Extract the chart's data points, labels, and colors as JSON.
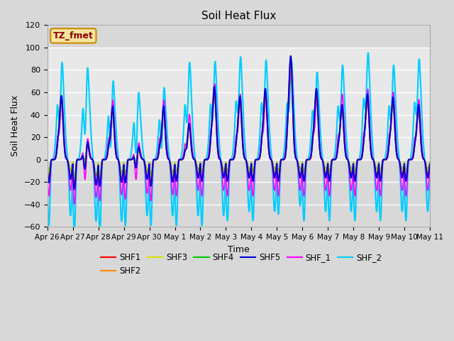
{
  "title": "Soil Heat Flux",
  "xlabel": "Time",
  "ylabel": "Soil Heat Flux",
  "ylim": [
    -60,
    120
  ],
  "tick_labels": [
    "Apr 26",
    "Apr 27",
    "Apr 28",
    "Apr 29",
    "Apr 30",
    "May 1",
    "May 2",
    "May 3",
    "May 4",
    "May 5",
    "May 6",
    "May 7",
    "May 8",
    "May 9",
    "May 10",
    "May 11"
  ],
  "series_colors": {
    "SHF1": "#ff0000",
    "SHF2": "#ff8800",
    "SHF3": "#dddd00",
    "SHF4": "#00cc00",
    "SHF5": "#0000dd",
    "SHF_1": "#ff00ff",
    "SHF_2": "#00ccff"
  },
  "legend_box_text": "TZ_fmet",
  "background_color": "#d8d8d8",
  "plot_bg_color": "#d8d8d8",
  "shaded_bg_color": "#e8e8e8",
  "grid_color": "#ffffff",
  "pos_peaks": {
    "SHF1": [
      65,
      20,
      55,
      15,
      55,
      38,
      72,
      63,
      70,
      100,
      70,
      55,
      65,
      62,
      55,
      40
    ],
    "SHF2": [
      65,
      20,
      55,
      15,
      55,
      38,
      72,
      63,
      70,
      100,
      70,
      55,
      65,
      62,
      55,
      40
    ],
    "SHF3": [
      60,
      18,
      50,
      12,
      50,
      35,
      68,
      58,
      65,
      90,
      65,
      50,
      60,
      57,
      50,
      36
    ],
    "SHF4": [
      60,
      18,
      50,
      12,
      50,
      35,
      68,
      58,
      65,
      90,
      65,
      50,
      60,
      57,
      50,
      36
    ],
    "SHF5": [
      67,
      22,
      58,
      16,
      58,
      40,
      75,
      66,
      73,
      103,
      73,
      58,
      68,
      65,
      58,
      42
    ],
    "SHF_1": [
      68,
      25,
      65,
      20,
      65,
      50,
      80,
      70,
      70,
      100,
      70,
      70,
      75,
      72,
      65,
      45
    ],
    "SHF_2": [
      100,
      95,
      82,
      70,
      75,
      100,
      101,
      105,
      102,
      100,
      90,
      97,
      109,
      97,
      103,
      99
    ]
  },
  "neg_peaks": {
    "SHF1": [
      -13,
      -17,
      -15,
      -13,
      -15,
      -12,
      -12,
      -12,
      -12,
      -12,
      -12,
      -12,
      -12,
      -12,
      -12,
      -12
    ],
    "SHF2": [
      -12,
      -16,
      -14,
      -12,
      -14,
      -11,
      -11,
      -11,
      -11,
      -11,
      -11,
      -11,
      -11,
      -11,
      -11,
      -11
    ],
    "SHF3": [
      -8,
      -12,
      -10,
      -9,
      -10,
      -8,
      -8,
      -8,
      -8,
      -8,
      -8,
      -8,
      -8,
      -8,
      -8,
      -8
    ],
    "SHF4": [
      -7,
      -11,
      -9,
      -8,
      -9,
      -7,
      -7,
      -7,
      -7,
      -7,
      -7,
      -7,
      -7,
      -7,
      -7,
      -7
    ],
    "SHF5": [
      -14,
      -18,
      -16,
      -14,
      -16,
      -13,
      -13,
      -13,
      -13,
      -13,
      -13,
      -13,
      -13,
      -13,
      -13,
      -13
    ],
    "SHF_1": [
      -22,
      -27,
      -25,
      -24,
      -25,
      -22,
      -22,
      -22,
      -22,
      -22,
      -22,
      -22,
      -22,
      -22,
      -22,
      -22
    ],
    "SHF_2": [
      -40,
      -44,
      -44,
      -40,
      -40,
      -40,
      -40,
      -37,
      -37,
      -33,
      -37,
      -37,
      -37,
      -37,
      -37,
      -37
    ]
  }
}
